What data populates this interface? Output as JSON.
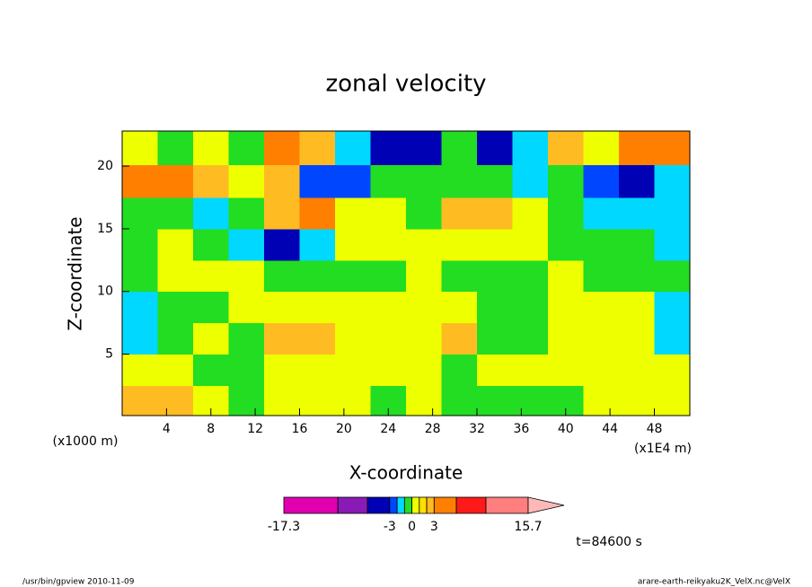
{
  "chart_data": {
    "type": "contour",
    "title": "zonal velocity",
    "x_label": "X-coordinate",
    "y_label": "Z-coordinate",
    "x_unit": "(x1E4 m)",
    "y_unit": "(x1000 m)",
    "time_label": "t=84600 s",
    "footer_left": "/usr/bin/gpview  2010-11-09",
    "footer_right": "arare-earth-reikyaku2K_VelX.nc@VelX",
    "xlim": [
      0,
      51.2
    ],
    "ylim": [
      0.1,
      22.8
    ],
    "xticks": [
      4,
      8,
      12,
      16,
      20,
      24,
      28,
      32,
      36,
      40,
      44,
      48
    ],
    "yticks": [
      5,
      10,
      15,
      20
    ],
    "x": [
      1.6,
      4.8,
      8,
      11.2,
      14.4,
      17.6,
      20.8,
      24,
      27.2,
      30.4,
      33.6,
      36.8,
      40,
      43.2,
      46.4,
      49.6
    ],
    "y": [
      1.25,
      3.75,
      6.25,
      8.75,
      11.25,
      13.75,
      16.25,
      18.75,
      21.5
    ],
    "z": [
      [
        2.5,
        2.5,
        0.5,
        -0.5,
        0.5,
        0.5,
        0.5,
        -0.5,
        0.5,
        -0.5,
        -0.5,
        -0.5,
        -0.5,
        0.5,
        0.5,
        0.5
      ],
      [
        0.5,
        0.5,
        -0.5,
        -0.5,
        0.5,
        0.5,
        0.5,
        0.5,
        0.5,
        -0.5,
        0.5,
        0.5,
        0.5,
        0.5,
        0.5,
        0.5
      ],
      [
        -1.5,
        -0.5,
        0.5,
        -0.5,
        2.5,
        2.5,
        0.5,
        0.5,
        0.5,
        2.5,
        -0.5,
        -0.5,
        0.5,
        0.5,
        0.5,
        -1.5
      ],
      [
        -1.5,
        -0.5,
        -0.5,
        0.5,
        0.5,
        0.5,
        0.5,
        0.5,
        0.5,
        0.5,
        -0.5,
        -0.5,
        0.5,
        0.5,
        0.5,
        -1.5
      ],
      [
        -0.5,
        0.5,
        0.5,
        0.5,
        -0.5,
        -0.5,
        -0.5,
        -0.5,
        0.5,
        -0.5,
        -0.5,
        -0.5,
        0.5,
        -0.5,
        -0.5,
        -0.5
      ],
      [
        -0.5,
        0.5,
        -0.5,
        -1.5,
        -4,
        -1.5,
        0.5,
        0.5,
        0.5,
        0.5,
        0.5,
        0.5,
        -0.5,
        -0.5,
        -0.5,
        -1.5
      ],
      [
        -0.5,
        -0.5,
        -1.5,
        -0.5,
        2.5,
        4,
        0.5,
        0.5,
        -0.5,
        2.5,
        2.5,
        0.5,
        -0.5,
        -1.5,
        -1.5,
        -1.5
      ],
      [
        4,
        4,
        2.5,
        0.5,
        2.5,
        -2.5,
        -2.5,
        -0.5,
        -0.5,
        -0.5,
        -0.5,
        -1.5,
        -0.5,
        -2.5,
        -4,
        -1.5
      ],
      [
        0.5,
        -0.5,
        0.5,
        -0.5,
        4,
        2.5,
        -1.5,
        -4,
        -4,
        -0.5,
        -4,
        -1.5,
        2.5,
        0.5,
        4,
        4
      ]
    ],
    "colorbar": {
      "levels": [
        -17.3,
        -10,
        -6,
        -3,
        -2,
        -1,
        0,
        1,
        2,
        3,
        6,
        10,
        15.7
      ],
      "colors": [
        "#e000b0",
        "#8a1ab5",
        "#0000b4",
        "#0046ff",
        "#00d8ff",
        "#22dd22",
        "#eeff00",
        "#ffe000",
        "#ffbb22",
        "#ff8000",
        "#ff1a1a",
        "#ff7f7f"
      ],
      "over_color": "#ffb8b8",
      "ticks": [
        -17.3,
        -3,
        0,
        3,
        15.7
      ]
    }
  }
}
